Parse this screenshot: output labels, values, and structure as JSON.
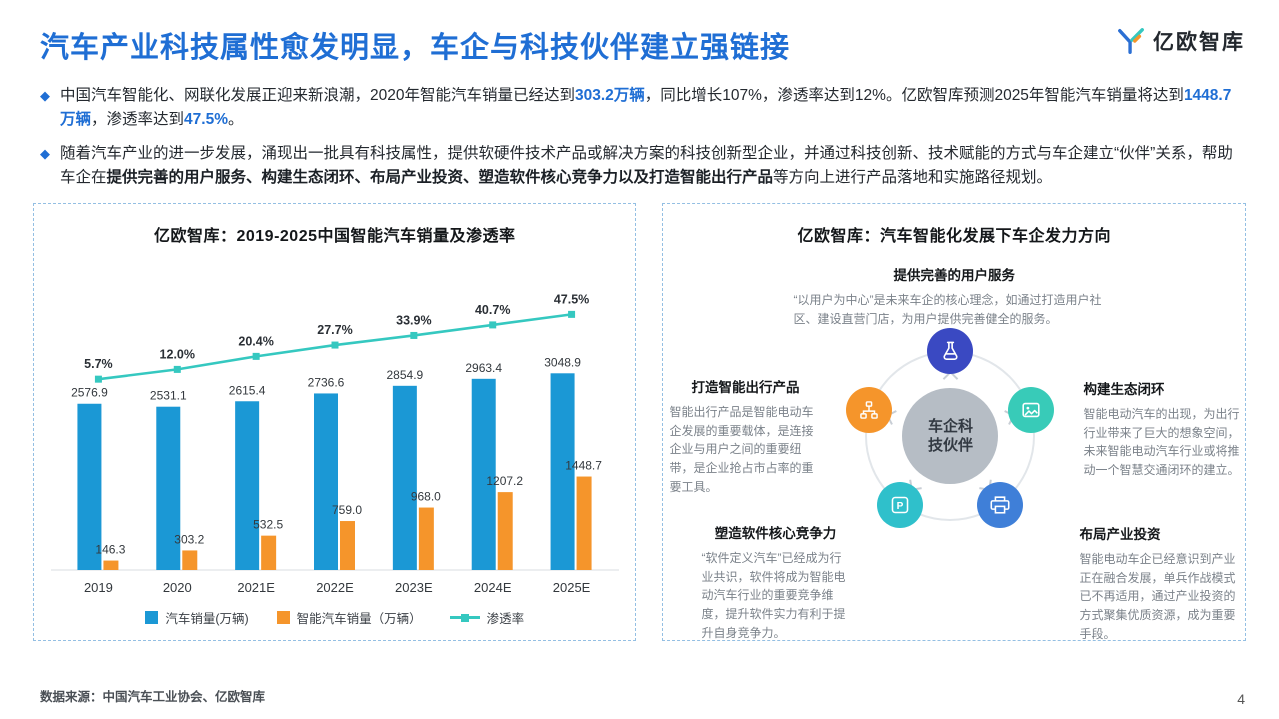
{
  "page": {
    "title": "汽车产业科技属性愈发明显，车企与科技伙伴建立强链接",
    "logo_text": "亿欧智库",
    "footer_source": "数据来源：中国汽车工业协会、亿欧智库",
    "page_number": "4"
  },
  "bullets": [
    {
      "segments": [
        {
          "text": "中国汽车智能化、网联化发展正迎来新浪潮，2020年智能汽车销量已经达到",
          "style": "normal"
        },
        {
          "text": "303.2万辆",
          "style": "blue-bold"
        },
        {
          "text": "，同比增长107%，渗透率达到12%。亿欧智库预测2025年智能汽车销量将达到",
          "style": "normal"
        },
        {
          "text": "1448.7万辆",
          "style": "blue-bold"
        },
        {
          "text": "，渗透率达到",
          "style": "normal"
        },
        {
          "text": "47.5%",
          "style": "blue-bold"
        },
        {
          "text": "。",
          "style": "normal"
        }
      ]
    },
    {
      "segments": [
        {
          "text": "随着汽车产业的进一步发展，涌现出一批具有科技属性，提供软硬件技术产品或解决方案的科技创新型企业，并通过科技创新、技术赋能的方式与车企建立“伙伴”关系，帮助车企在",
          "style": "normal"
        },
        {
          "text": "提供完善的用户服务、构建生态闭环、布局产业投资、塑造软件核心竞争力以及打造智能出行产品",
          "style": "bold"
        },
        {
          "text": "等方向上进行产品落地和实施路径规划。",
          "style": "normal"
        }
      ]
    }
  ],
  "chart_data": {
    "type": "bar+line",
    "title": "亿欧智库：2019-2025中国智能汽车销量及渗透率",
    "categories": [
      "2019",
      "2020",
      "2021E",
      "2022E",
      "2023E",
      "2024E",
      "2025E"
    ],
    "series": [
      {
        "name": "汽车销量(万辆)",
        "type": "bar",
        "color": "#1b98d5",
        "values": [
          2576.9,
          2531.1,
          2615.4,
          2736.6,
          2854.9,
          2963.4,
          3048.9
        ]
      },
      {
        "name": "智能汽车销量（万辆）",
        "type": "bar",
        "color": "#f5952b",
        "values": [
          146.3,
          303.2,
          532.5,
          759.0,
          968.0,
          1207.2,
          1448.7
        ]
      },
      {
        "name": "渗透率",
        "type": "line",
        "color": "#35c8c0",
        "unit": "%",
        "values": [
          5.7,
          12.0,
          20.4,
          27.7,
          33.9,
          40.7,
          47.5
        ]
      }
    ],
    "legend_position": "bottom",
    "grid": false,
    "value_axis_hidden": true
  },
  "diagram": {
    "title": "亿欧智库：汽车智能化发展下车企发力方向",
    "center": "车企科技伙伴",
    "nodes": [
      {
        "heading": "提供完善的用户服务",
        "icon": "flask",
        "color": "#3a49c2",
        "desc": "“以用户为中心”是未来车企的核心理念，如通过打造用户社区、建设直营门店，为用户提供完善健全的服务。"
      },
      {
        "heading": "构建生态闭环",
        "icon": "image",
        "color": "#38cbb8",
        "desc": "智能电动汽车的出现，为出行行业带来了巨大的想象空间，未来智能电动汽车行业或将推动一个智慧交通闭环的建立。"
      },
      {
        "heading": "布局产业投资",
        "icon": "printer",
        "color": "#3f7fd8",
        "desc": "智能电动车企已经意识到产业正在融合发展，单兵作战模式已不再适用，通过产业投资的方式聚集优质资源，成为重要手段。"
      },
      {
        "heading": "塑造软件核心竞争力",
        "icon": "p-document",
        "color": "#2fc0cb",
        "desc": "“软件定义汽车”已经成为行业共识，软件将成为智能电动汽车行业的重要竞争维度，提升软件实力有利于提升自身竞争力。"
      },
      {
        "heading": "打造智能出行产品",
        "icon": "org-chart",
        "color": "#f5952b",
        "desc": "智能出行产品是智能电动车企发展的重要载体，是连接企业与用户之间的重要纽带，是企业抢占市占率的重要工具。"
      }
    ]
  },
  "colors": {
    "accent_blue": "#1f6ed4"
  }
}
